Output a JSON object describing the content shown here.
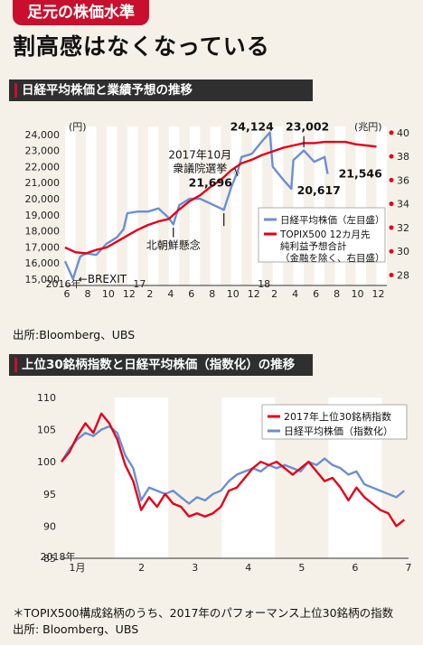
{
  "header": {
    "tag": "足元の株価水準",
    "headline": "割高感はなくなっている"
  },
  "chart1_title": "日経平均株価と業績予想の推移",
  "chart1_source": "出所:Bloomberg、UBS",
  "chart2_title": "上位30銘柄指数と日経平均株価（指数化）の推移",
  "chart2_note": "＊TOPIX500構成銘柄のうち、2017年のパフォーマンス上位30銘柄の指数",
  "chart2_source": "出所: Bloomberg、UBS",
  "colors": {
    "red": "#e3001b",
    "blue": "#6b8fd4",
    "band": "#ffffff",
    "bg": "#f6f1e8"
  },
  "chart_data": [
    {
      "type": "line",
      "title": "日経平均株価と業績予想の推移",
      "y_unit_left": "(円)",
      "y_unit_right": "(兆円)",
      "y_left_ticks": [
        "15,000",
        "16,000",
        "17,000",
        "18,000",
        "19,000",
        "20,000",
        "21,000",
        "22,000",
        "23,000",
        "24,000"
      ],
      "ylim_left": [
        14600,
        24500
      ],
      "y_right_ticks": [
        "28",
        "30",
        "32",
        "34",
        "36",
        "38",
        "40"
      ],
      "ylim_right": [
        27.2,
        40.6
      ],
      "x_ticks": [
        "6",
        "8",
        "10",
        "12",
        "2",
        "4",
        "6",
        "8",
        "10",
        "12",
        "2",
        "4",
        "6",
        "8",
        "10",
        "12"
      ],
      "year_labels": [
        "2016年",
        "17",
        "18"
      ],
      "x_start": "2016-06",
      "series": [
        {
          "name": "日経平均株価（左目盛）",
          "axis": "left",
          "color": "#6b8fd4",
          "points": [
            [
              "2016-06",
              16100
            ],
            [
              "2016-06-24",
              15000
            ],
            [
              "2016-07",
              15500
            ],
            [
              "2016-07-15",
              16400
            ],
            [
              "2016-08",
              16600
            ],
            [
              "2016-09",
              16500
            ],
            [
              "2016-10",
              17200
            ],
            [
              "2016-11",
              17600
            ],
            [
              "2016-11-20",
              18100
            ],
            [
              "2016-12",
              19100
            ],
            [
              "2017-01",
              19200
            ],
            [
              "2017-02",
              19200
            ],
            [
              "2017-03",
              19400
            ],
            [
              "2017-04",
              18800
            ],
            [
              "2017-04-14",
              18400
            ],
            [
              "2017-05",
              19600
            ],
            [
              "2017-06",
              20000
            ],
            [
              "2017-07",
              20000
            ],
            [
              "2017-08",
              19700
            ],
            [
              "2017-09",
              19400
            ],
            [
              "2017-09-10",
              19300
            ],
            [
              "2017-10",
              20700
            ],
            [
              "2017-10-20",
              21696
            ],
            [
              "2017-11",
              22600
            ],
            [
              "2017-12",
              22800
            ],
            [
              "2018-01",
              23600
            ],
            [
              "2018-01-23",
              24124
            ],
            [
              "2018-02",
              22000
            ],
            [
              "2018-03",
              21200
            ],
            [
              "2018-03-25",
              20617
            ],
            [
              "2018-04",
              22400
            ],
            [
              "2018-05",
              23002
            ],
            [
              "2018-06",
              22300
            ],
            [
              "2018-07",
              22600
            ],
            [
              "2018-07-10",
              21546
            ]
          ]
        },
        {
          "name": "TOPIX500 12カ月先純利益予想合計（金融を除く、右目盛）",
          "axis": "right",
          "color": "#e3001b",
          "points": [
            [
              "2016-06",
              30.4
            ],
            [
              "2016-07",
              30.0
            ],
            [
              "2016-08",
              29.9
            ],
            [
              "2016-09",
              30.2
            ],
            [
              "2016-10",
              30.4
            ],
            [
              "2016-11",
              30.9
            ],
            [
              "2016-12",
              31.4
            ],
            [
              "2017-01",
              31.9
            ],
            [
              "2017-02",
              32.3
            ],
            [
              "2017-03",
              32.6
            ],
            [
              "2017-04",
              32.8
            ],
            [
              "2017-05",
              33.6
            ],
            [
              "2017-06",
              34.3
            ],
            [
              "2017-07",
              34.8
            ],
            [
              "2017-08",
              35.5
            ],
            [
              "2017-09",
              36.1
            ],
            [
              "2017-10",
              36.9
            ],
            [
              "2017-11",
              37.5
            ],
            [
              "2017-12",
              37.8
            ],
            [
              "2018-01",
              38.2
            ],
            [
              "2018-02",
              38.5
            ],
            [
              "2018-03",
              38.8
            ],
            [
              "2018-04",
              39.0
            ],
            [
              "2018-05",
              39.2
            ],
            [
              "2018-06",
              39.2
            ],
            [
              "2018-07",
              39.3
            ],
            [
              "2018-08",
              39.3
            ],
            [
              "2018-09",
              39.3
            ],
            [
              "2018-10",
              39.1
            ],
            [
              "2018-11",
              39.0
            ],
            [
              "2018-12",
              38.9
            ]
          ]
        }
      ],
      "annotations": [
        {
          "text": "←BREXIT"
        },
        {
          "text": "北朝鮮懸念"
        },
        {
          "text": "2017年10月"
        },
        {
          "text": "衆議院選挙"
        },
        {
          "text": "21,696"
        },
        {
          "text": "24,124"
        },
        {
          "text": "23,002"
        },
        {
          "text": "20,617"
        },
        {
          "text": "21,546"
        }
      ],
      "legend": [
        "日経平均株価（左目盛）",
        "TOPIX500 12カ月先",
        "純利益予想合計",
        "（金融を除く、右目盛）"
      ],
      "legend_position": "lower-right"
    },
    {
      "type": "line",
      "title": "上位30銘柄指数と日経平均株価（指数化）の推移",
      "ylim": [
        85,
        110
      ],
      "y_ticks": [
        "85",
        "90",
        "95",
        "100",
        "105",
        "110"
      ],
      "x_ticks": [
        "1月",
        "2",
        "3",
        "4",
        "5",
        "6",
        "7"
      ],
      "year_label": "2018年",
      "x_start": "2018-01",
      "series": [
        {
          "name": "2017年上位30銘柄指数",
          "color": "#e3001b",
          "values": [
            100,
            101.5,
            104,
            106,
            104.5,
            107.5,
            106,
            103.5,
            99.5,
            97,
            92.5,
            94.5,
            93,
            95,
            93.5,
            93,
            91.5,
            92,
            91.5,
            92,
            93,
            95.5,
            96,
            97.5,
            99,
            100,
            99.5,
            100,
            99,
            98,
            99,
            100,
            98.5,
            97,
            97.5,
            96,
            94,
            96,
            94.5,
            93.5,
            92.5,
            92,
            90,
            91
          ]
        },
        {
          "name": "日経平均株価（指数化）",
          "color": "#6b8fd4",
          "values": [
            100,
            102,
            103.5,
            104.5,
            104,
            105,
            105.5,
            104.5,
            101,
            99,
            94,
            96,
            95.5,
            95,
            95.5,
            94.5,
            93.5,
            94.5,
            94,
            95,
            95.5,
            97,
            98,
            98.5,
            99,
            98.5,
            99.5,
            99,
            99.5,
            99,
            98.5,
            100,
            99.5,
            100.5,
            99.5,
            99,
            98,
            98.5,
            96.5,
            96,
            95.5,
            95,
            94.5,
            95.5
          ]
        }
      ],
      "legend": [
        "2017年上位30銘柄指数",
        "日経平均株価（指数化）"
      ],
      "legend_position": "top-right"
    }
  ]
}
